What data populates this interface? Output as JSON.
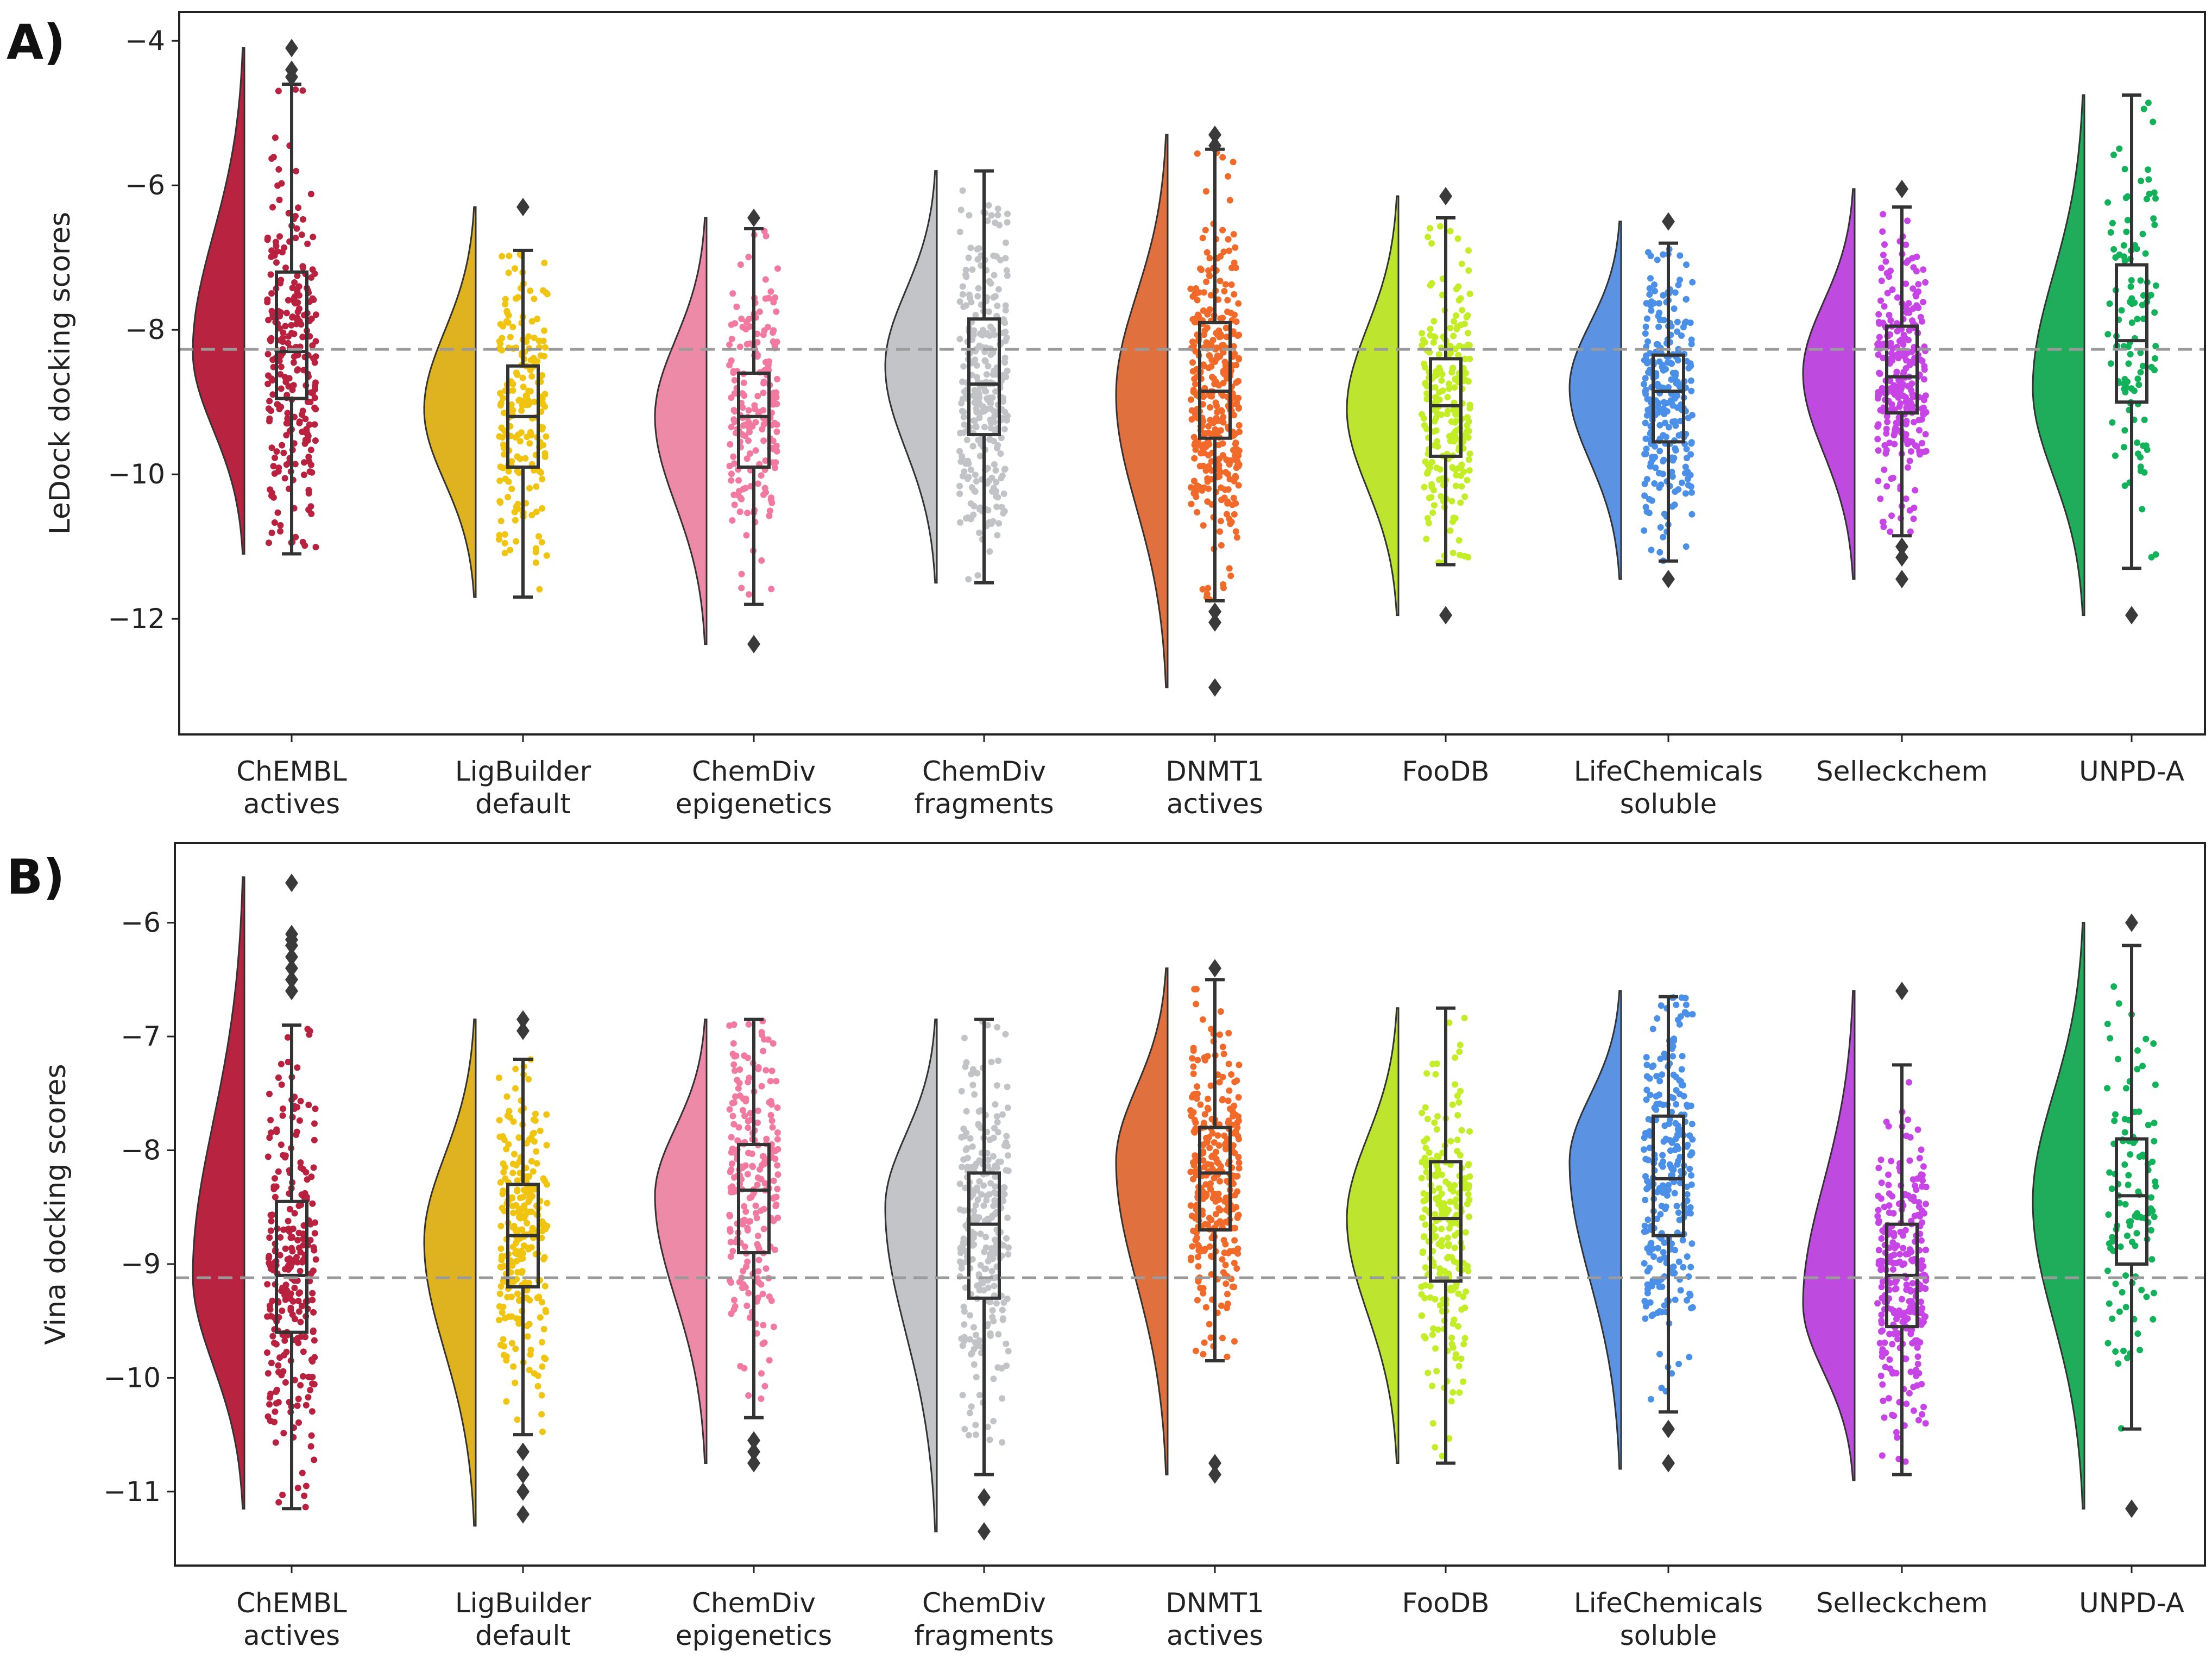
{
  "chart_data": [
    {
      "panel": "A)",
      "type": "raincloud",
      "ylabel": "LeDock docking scores",
      "ylim": [
        -13.6,
        -3.6
      ],
      "yticks": [
        -12,
        -10,
        -8,
        -6,
        -4
      ],
      "reference_line": -8.27,
      "categories": [
        "ChEMBL actives",
        "LigBuilder default",
        "ChemDiv epigenetics",
        "ChemDiv fragments",
        "DNMT1 actives",
        "FooDB",
        "LifeChemicals soluble",
        "Selleckchem",
        "UNPD-A"
      ],
      "tick_labels": [
        [
          "ChEMBL",
          "actives"
        ],
        [
          "LigBuilder",
          "default"
        ],
        [
          "ChemDiv",
          "epigenetics"
        ],
        [
          "ChemDiv",
          "fragments"
        ],
        [
          "DNMT1",
          "actives"
        ],
        [
          "FooDB"
        ],
        [
          "LifeChemicals",
          "soluble"
        ],
        [
          "Selleckchem"
        ],
        [
          "UNPD-A"
        ]
      ],
      "colors": [
        "#b9213f",
        "#f1c40f",
        "#f27aa0",
        "#c1c3c7",
        "#f26a2a",
        "#c3ee26",
        "#4a8fe8",
        "#c745e6",
        "#12b25b"
      ],
      "violin_colors": [
        "#b82440",
        "#dfb21f",
        "#ec8aa7",
        "#c3c4c8",
        "#e0713f",
        "#bde42f",
        "#5b93e2",
        "#bf4ae0",
        "#1fad5b"
      ],
      "series": [
        {
          "name": "ChEMBL actives",
          "n": 260,
          "q1": -8.95,
          "median": -8.3,
          "q3": -7.2,
          "whisker_low": -11.1,
          "whisker_high": -4.6,
          "outliers": [
            -4.1,
            -4.4,
            -4.5
          ],
          "kde_mode": -8.3,
          "kde_range": [
            -11.1,
            -4.1
          ]
        },
        {
          "name": "LigBuilder default",
          "n": 200,
          "q1": -9.9,
          "median": -9.2,
          "q3": -8.5,
          "whisker_low": -11.7,
          "whisker_high": -6.9,
          "outliers": [
            -6.3
          ],
          "kde_mode": -9.1,
          "kde_range": [
            -11.7,
            -6.3
          ]
        },
        {
          "name": "ChemDiv epigenetics",
          "n": 190,
          "q1": -9.9,
          "median": -9.2,
          "q3": -8.6,
          "whisker_low": -11.8,
          "whisker_high": -6.6,
          "outliers": [
            -6.45,
            -12.35
          ],
          "kde_mode": -9.2,
          "kde_range": [
            -12.35,
            -6.45
          ]
        },
        {
          "name": "ChemDiv fragments",
          "n": 300,
          "q1": -9.45,
          "median": -8.75,
          "q3": -7.85,
          "whisker_low": -11.5,
          "whisker_high": -5.8,
          "outliers": [],
          "kde_mode": -8.5,
          "kde_range": [
            -11.5,
            -5.8
          ]
        },
        {
          "name": "DNMT1 actives",
          "n": 360,
          "q1": -9.5,
          "median": -8.85,
          "q3": -7.9,
          "whisker_low": -11.75,
          "whisker_high": -5.5,
          "outliers": [
            -5.3,
            -5.45,
            -11.9,
            -12.05,
            -12.95
          ],
          "kde_mode": -8.9,
          "kde_range": [
            -12.95,
            -5.3
          ]
        },
        {
          "name": "FooDB",
          "n": 230,
          "q1": -9.75,
          "median": -9.05,
          "q3": -8.4,
          "whisker_low": -11.25,
          "whisker_high": -6.45,
          "outliers": [
            -6.15,
            -11.95
          ],
          "kde_mode": -9.1,
          "kde_range": [
            -11.95,
            -6.15
          ]
        },
        {
          "name": "LifeChemicals soluble",
          "n": 260,
          "q1": -9.55,
          "median": -8.85,
          "q3": -8.35,
          "whisker_low": -11.2,
          "whisker_high": -6.8,
          "outliers": [
            -6.5,
            -11.45
          ],
          "kde_mode": -8.8,
          "kde_range": [
            -11.45,
            -6.5
          ]
        },
        {
          "name": "Selleckchem",
          "n": 280,
          "q1": -9.15,
          "median": -8.65,
          "q3": -7.95,
          "whisker_low": -10.85,
          "whisker_high": -6.3,
          "outliers": [
            -6.05,
            -11.0,
            -11.15,
            -11.45
          ],
          "kde_mode": -8.6,
          "kde_range": [
            -11.45,
            -6.05
          ]
        },
        {
          "name": "UNPD-A",
          "n": 110,
          "q1": -9.0,
          "median": -8.15,
          "q3": -7.1,
          "whisker_low": -11.3,
          "whisker_high": -4.75,
          "outliers": [
            -11.95
          ],
          "kde_mode": -8.8,
          "kde_range": [
            -11.95,
            -4.75
          ]
        }
      ]
    },
    {
      "panel": "B)",
      "type": "raincloud",
      "ylabel": "Vina docking scores",
      "ylim": [
        -11.65,
        -5.3
      ],
      "yticks": [
        -11,
        -10,
        -9,
        -8,
        -7,
        -6
      ],
      "reference_line": -9.12,
      "categories": [
        "ChEMBL actives",
        "LigBuilder default",
        "ChemDiv epigenetics",
        "ChemDiv fragments",
        "DNMT1 actives",
        "FooDB",
        "LifeChemicals soluble",
        "Selleckchem",
        "UNPD-A"
      ],
      "tick_labels": [
        [
          "ChEMBL",
          "actives"
        ],
        [
          "LigBuilder",
          "default"
        ],
        [
          "ChemDiv",
          "epigenetics"
        ],
        [
          "ChemDiv",
          "fragments"
        ],
        [
          "DNMT1",
          "actives"
        ],
        [
          "FooDB"
        ],
        [
          "LifeChemicals",
          "soluble"
        ],
        [
          "Selleckchem"
        ],
        [
          "UNPD-A"
        ]
      ],
      "colors": [
        "#b9213f",
        "#f1c40f",
        "#f27aa0",
        "#c1c3c7",
        "#f26a2a",
        "#c3ee26",
        "#4a8fe8",
        "#c745e6",
        "#12b25b"
      ],
      "violin_colors": [
        "#b82440",
        "#dfb21f",
        "#ec8aa7",
        "#c3c4c8",
        "#e0713f",
        "#bde42f",
        "#5b93e2",
        "#bf4ae0",
        "#1fad5b"
      ],
      "series": [
        {
          "name": "ChEMBL actives",
          "n": 260,
          "q1": -9.6,
          "median": -9.1,
          "q3": -8.45,
          "whisker_low": -11.15,
          "whisker_high": -6.9,
          "outliers": [
            -5.65,
            -6.1,
            -6.15,
            -6.2,
            -6.3,
            -6.4,
            -6.5,
            -6.6
          ],
          "kde_mode": -9.1,
          "kde_range": [
            -11.15,
            -5.6
          ]
        },
        {
          "name": "LigBuilder default",
          "n": 250,
          "q1": -9.2,
          "median": -8.75,
          "q3": -8.3,
          "whisker_low": -10.5,
          "whisker_high": -7.2,
          "outliers": [
            -6.85,
            -6.95,
            -10.65,
            -10.85,
            -11.0,
            -11.2
          ],
          "kde_mode": -8.8,
          "kde_range": [
            -11.3,
            -6.85
          ]
        },
        {
          "name": "ChemDiv epigenetics",
          "n": 220,
          "q1": -8.9,
          "median": -8.35,
          "q3": -7.95,
          "whisker_low": -10.35,
          "whisker_high": -6.85,
          "outliers": [
            -10.55,
            -10.65,
            -10.75
          ],
          "kde_mode": -8.4,
          "kde_range": [
            -10.75,
            -6.85
          ]
        },
        {
          "name": "ChemDiv fragments",
          "n": 270,
          "q1": -9.3,
          "median": -8.65,
          "q3": -8.2,
          "whisker_low": -10.85,
          "whisker_high": -6.85,
          "outliers": [
            -11.05,
            -11.35
          ],
          "kde_mode": -8.5,
          "kde_range": [
            -11.35,
            -6.85
          ]
        },
        {
          "name": "DNMT1 actives",
          "n": 300,
          "q1": -8.7,
          "median": -8.2,
          "q3": -7.8,
          "whisker_low": -9.85,
          "whisker_high": -6.5,
          "outliers": [
            -6.4,
            -10.75,
            -10.85
          ],
          "kde_mode": -8.1,
          "kde_range": [
            -10.85,
            -6.4
          ]
        },
        {
          "name": "FooDB",
          "n": 230,
          "q1": -9.15,
          "median": -8.6,
          "q3": -8.1,
          "whisker_low": -10.75,
          "whisker_high": -6.75,
          "outliers": [],
          "kde_mode": -8.6,
          "kde_range": [
            -10.75,
            -6.75
          ]
        },
        {
          "name": "LifeChemicals soluble",
          "n": 260,
          "q1": -8.75,
          "median": -8.25,
          "q3": -7.7,
          "whisker_low": -10.3,
          "whisker_high": -6.65,
          "outliers": [
            -10.45,
            -10.75
          ],
          "kde_mode": -8.1,
          "kde_range": [
            -10.8,
            -6.6
          ]
        },
        {
          "name": "Selleckchem",
          "n": 280,
          "q1": -9.55,
          "median": -9.1,
          "q3": -8.65,
          "whisker_low": -10.85,
          "whisker_high": -7.25,
          "outliers": [
            -6.6
          ],
          "kde_mode": -9.35,
          "kde_range": [
            -10.9,
            -6.6
          ]
        },
        {
          "name": "UNPD-A",
          "n": 110,
          "q1": -9.0,
          "median": -8.4,
          "q3": -7.9,
          "whisker_low": -10.45,
          "whisker_high": -6.2,
          "outliers": [
            -6.0,
            -11.15
          ],
          "kde_mode": -8.45,
          "kde_range": [
            -11.15,
            -6.0
          ]
        }
      ]
    }
  ]
}
